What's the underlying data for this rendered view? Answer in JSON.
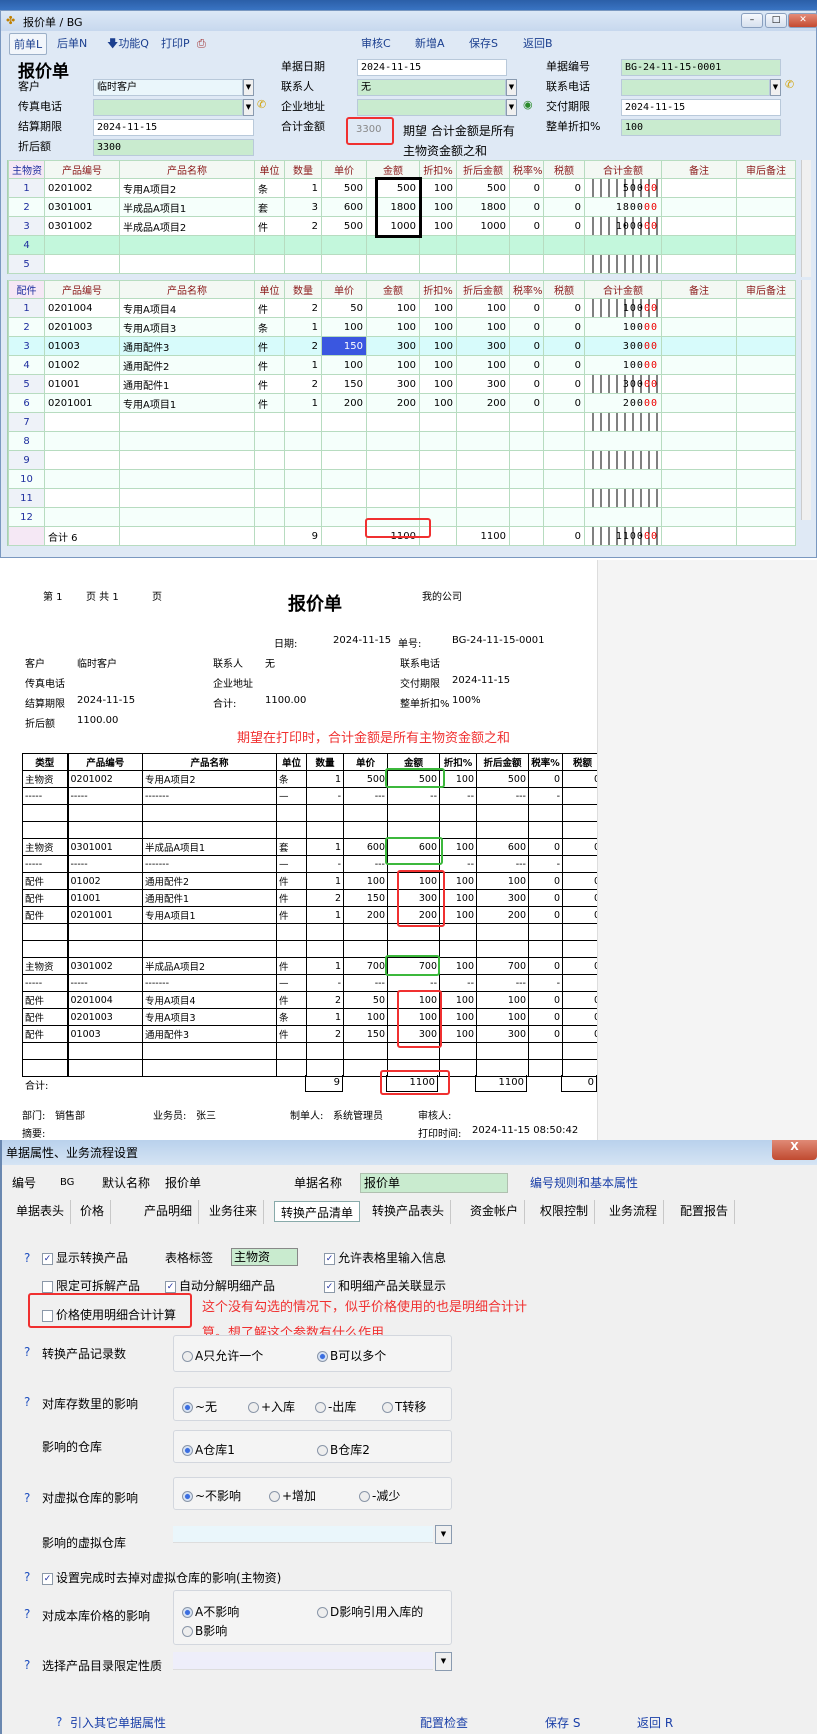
{
  "window1": {
    "title": "报价单 / BG",
    "toolbar": [
      "前单L",
      "后单N",
      "功能Q",
      "打印P",
      "审核C",
      "新增A",
      "保存S",
      "返回B"
    ],
    "heading": "报价单",
    "fields": {
      "date_label": "单据日期",
      "date": "2024-11-15",
      "no_label": "单据编号",
      "no": "BG-24-11-15-0001",
      "customer_label": "客户",
      "customer": "临时客户",
      "contact_label": "联系人",
      "contact": "无",
      "phone_label": "联系电话",
      "phone": "",
      "fax_label": "传真电话",
      "fax": "",
      "address_label": "企业地址",
      "address": "",
      "delivery_label": "交付期限",
      "delivery": "2024-11-15",
      "settle_label": "结算期限",
      "settle": "2024-11-15",
      "total_label": "合计金额",
      "total": "3300",
      "discount_label": "整单折扣%",
      "discount": "100",
      "after_label": "折后额",
      "after": "3300"
    },
    "annotation": [
      "期望 合计金额是所有",
      "主物资金额之和"
    ],
    "columns": [
      "产品编号",
      "产品名称",
      "单位",
      "数量",
      "单价",
      "金额",
      "折扣%",
      "折后金额",
      "税率%",
      "税额",
      "合计金额",
      "备注",
      "审后备注"
    ],
    "grid_main": {
      "label": "主物资",
      "rows": [
        {
          "no": "1",
          "code": "0201002",
          "name": "专用A项目2",
          "unit": "条",
          "qty": "1",
          "price": "500",
          "amount": "500",
          "disc": "100",
          "after": "500",
          "rate": "0",
          "tax": "0",
          "ledger": "50000"
        },
        {
          "no": "2",
          "code": "0301001",
          "name": "半成品A项目1",
          "unit": "套",
          "qty": "3",
          "price": "600",
          "amount": "1800",
          "disc": "100",
          "after": "1800",
          "rate": "0",
          "tax": "0",
          "ledger": "180000"
        },
        {
          "no": "3",
          "code": "0301002",
          "name": "半成品A项目2",
          "unit": "件",
          "qty": "2",
          "price": "500",
          "amount": "1000",
          "disc": "100",
          "after": "1000",
          "rate": "0",
          "tax": "0",
          "ledger": "100000"
        },
        {
          "no": "4"
        },
        {
          "no": "5"
        }
      ]
    },
    "grid_parts": {
      "label": "配件",
      "rows": [
        {
          "no": "1",
          "code": "0201004",
          "name": "专用A项目4",
          "unit": "件",
          "qty": "2",
          "price": "50",
          "amount": "100",
          "disc": "100",
          "after": "100",
          "rate": "0",
          "tax": "0",
          "ledger": "10000"
        },
        {
          "no": "2",
          "code": "0201003",
          "name": "专用A项目3",
          "unit": "条",
          "qty": "1",
          "price": "100",
          "amount": "100",
          "disc": "100",
          "after": "100",
          "rate": "0",
          "tax": "0",
          "ledger": "10000"
        },
        {
          "no": "3",
          "code": "01003",
          "name": "通用配件3",
          "unit": "件",
          "qty": "2",
          "price": "150",
          "amount": "300",
          "disc": "100",
          "after": "300",
          "rate": "0",
          "tax": "0",
          "ledger": "30000"
        },
        {
          "no": "4",
          "code": "01002",
          "name": "通用配件2",
          "unit": "件",
          "qty": "1",
          "price": "100",
          "amount": "100",
          "disc": "100",
          "after": "100",
          "rate": "0",
          "tax": "0",
          "ledger": "10000"
        },
        {
          "no": "5",
          "code": "01001",
          "name": "通用配件1",
          "unit": "件",
          "qty": "2",
          "price": "150",
          "amount": "300",
          "disc": "100",
          "after": "300",
          "rate": "0",
          "tax": "0",
          "ledger": "30000"
        },
        {
          "no": "6",
          "code": "0201001",
          "name": "专用A项目1",
          "unit": "件",
          "qty": "1",
          "price": "200",
          "amount": "200",
          "disc": "100",
          "after": "200",
          "rate": "0",
          "tax": "0",
          "ledger": "20000"
        },
        {
          "no": "7"
        },
        {
          "no": "8"
        },
        {
          "no": "9"
        },
        {
          "no": "10"
        },
        {
          "no": "11"
        },
        {
          "no": "12"
        }
      ],
      "total": {
        "code": "合计 6",
        "qty": "9",
        "amount": "1100",
        "after": "1100",
        "tax": "0",
        "ledger": "110000"
      }
    }
  },
  "print": {
    "page_info": {
      "a": "第 1",
      "b": "页 共 1",
      "c": "页"
    },
    "title": "报价单",
    "company": "我的公司",
    "date_label": "日期:",
    "date": "2024-11-15",
    "no_label": "单号:",
    "no": "BG-24-11-15-0001",
    "customer_label": "客户",
    "customer": "临时客户",
    "contact_label": "联系人",
    "contact": "无",
    "phone_label": "联系电话",
    "fax_label": "传真电话",
    "address_label": "企业地址",
    "delivery_label": "交付期限",
    "delivery": "2024-11-15",
    "settle_label": "结算期限",
    "settle": "2024-11-15",
    "total_label": "合计:",
    "total": "1100.00",
    "discount_label": "整单折扣%",
    "discount": "100%",
    "after_label": "折后额",
    "after": "1100.00",
    "annotation": "期望在打印时，合计金额是所有主物资金额之和",
    "columns": [
      "类型",
      "产品编号",
      "产品名称",
      "单位",
      "数量",
      "单价",
      "金额",
      "折扣%",
      "折后金额",
      "税率%",
      "税额"
    ],
    "rows": [
      [
        "主物资",
        "0201002",
        "专用A项目2",
        "条",
        "1",
        "500",
        "500",
        "100",
        "500",
        "0",
        "0"
      ],
      [
        "-----",
        "-----",
        "-------",
        "—",
        "-",
        "---",
        "--",
        "--",
        "---",
        "-",
        "-"
      ],
      [
        "",
        "",
        "",
        "",
        "",
        "",
        "",
        "",
        "",
        "",
        ""
      ],
      [
        "",
        "",
        "",
        "",
        "",
        "",
        "",
        "",
        "",
        "",
        ""
      ],
      [
        "主物资",
        "0301001",
        "半成品A项目1",
        "套",
        "1",
        "600",
        "600",
        "100",
        "600",
        "0",
        "0"
      ],
      [
        "-----",
        "-----",
        "-------",
        "—",
        "-",
        "---",
        "--",
        "--",
        "---",
        "-",
        "-"
      ],
      [
        "配件",
        "01002",
        "通用配件2",
        "件",
        "1",
        "100",
        "100",
        "100",
        "100",
        "0",
        "0"
      ],
      [
        "配件",
        "01001",
        "通用配件1",
        "件",
        "2",
        "150",
        "300",
        "100",
        "300",
        "0",
        "0"
      ],
      [
        "配件",
        "0201001",
        "专用A项目1",
        "件",
        "1",
        "200",
        "200",
        "100",
        "200",
        "0",
        "0"
      ],
      [
        "",
        "",
        "",
        "",
        "",
        "",
        "",
        "",
        "",
        "",
        ""
      ],
      [
        "",
        "",
        "",
        "",
        "",
        "",
        "",
        "",
        "",
        "",
        ""
      ],
      [
        "主物资",
        "0301002",
        "半成品A项目2",
        "件",
        "1",
        "700",
        "700",
        "100",
        "700",
        "0",
        "0"
      ],
      [
        "-----",
        "-----",
        "-------",
        "—",
        "-",
        "---",
        "--",
        "--",
        "---",
        "-",
        "-"
      ],
      [
        "配件",
        "0201004",
        "专用A项目4",
        "件",
        "2",
        "50",
        "100",
        "100",
        "100",
        "0",
        "0"
      ],
      [
        "配件",
        "0201003",
        "专用A项目3",
        "条",
        "1",
        "100",
        "100",
        "100",
        "100",
        "0",
        "0"
      ],
      [
        "配件",
        "01003",
        "通用配件3",
        "件",
        "2",
        "150",
        "300",
        "100",
        "300",
        "0",
        "0"
      ],
      [
        "",
        "",
        "",
        "",
        "",
        "",
        "",
        "",
        "",
        "",
        ""
      ],
      [
        "",
        "",
        "",
        "",
        "",
        "",
        "",
        "",
        "",
        "",
        ""
      ]
    ],
    "total_qty": "9",
    "total_amount": "1100",
    "total_after": "1100",
    "total_tax": "0",
    "dept_label": "部门:",
    "dept": "销售部",
    "sales_label": "业务员:",
    "sales": "张三",
    "maker_label": "制单人:",
    "maker": "系统管理员",
    "auditor_label": "审核人:",
    "memo_label": "摘要:",
    "print_time_label": "打印时间:",
    "print_time": "2024-11-15 08:50:42"
  },
  "settings": {
    "title": "单据属性、业务流程设置",
    "code_label": "编号",
    "code": "BG",
    "default_name_label": "默认名称",
    "default_name": "报价单",
    "doc_name_label": "单据名称",
    "doc_name": "报价单",
    "rules_link": "编号规则和基本属性",
    "tabs": [
      "单据表头",
      "价格",
      "产品明细",
      "业务往来",
      "转换产品清单",
      "转换产品表头",
      "资金帐户",
      "权限控制",
      "业务流程",
      "配置报告"
    ],
    "active_tab": "转换产品清单",
    "show_convert": "显示转换产品",
    "table_tag_label": "表格标签",
    "table_tag": "主物资",
    "allow_input": "允许表格里输入信息",
    "limit_split": "限定可拆解产品",
    "auto_split": "自动分解明细产品",
    "linked_display": "和明细产品关联显示",
    "price_detail": "价格使用明细合计计算",
    "annotation": [
      "这个没有勾选的情况下，似乎价格使用的也是明细合计计",
      "算。想了解这个参数有什么作用"
    ],
    "record_count_label": "转换产品记录数",
    "record_count_opts": [
      "A只允许一个",
      "B可以多个"
    ],
    "stock_label": "对库存数里的影响",
    "stock_opts": [
      "~无",
      "+入库",
      "-出库",
      "T转移"
    ],
    "warehouse_label": "影响的仓库",
    "warehouse_opts": [
      "A仓库1",
      "B仓库2"
    ],
    "virtual_label": "对虚拟仓库的影响",
    "virtual_opts": [
      "~不影响",
      "+增加",
      "-减少"
    ],
    "virtual_wh_label": "影响的虚拟仓库",
    "remove_virtual": "设置完成时去掉对虚拟仓库的影响(主物资)",
    "cost_label": "对成本库价格的影响",
    "cost_opts": [
      "A不影响",
      "D影响引用入库的",
      "B影响"
    ],
    "catalog_label": "选择产品目录限定性质",
    "import_link": "引入其它单据属性",
    "check_btn": "配置检查",
    "save_btn": "保存 S",
    "back_btn": "返回 R"
  }
}
